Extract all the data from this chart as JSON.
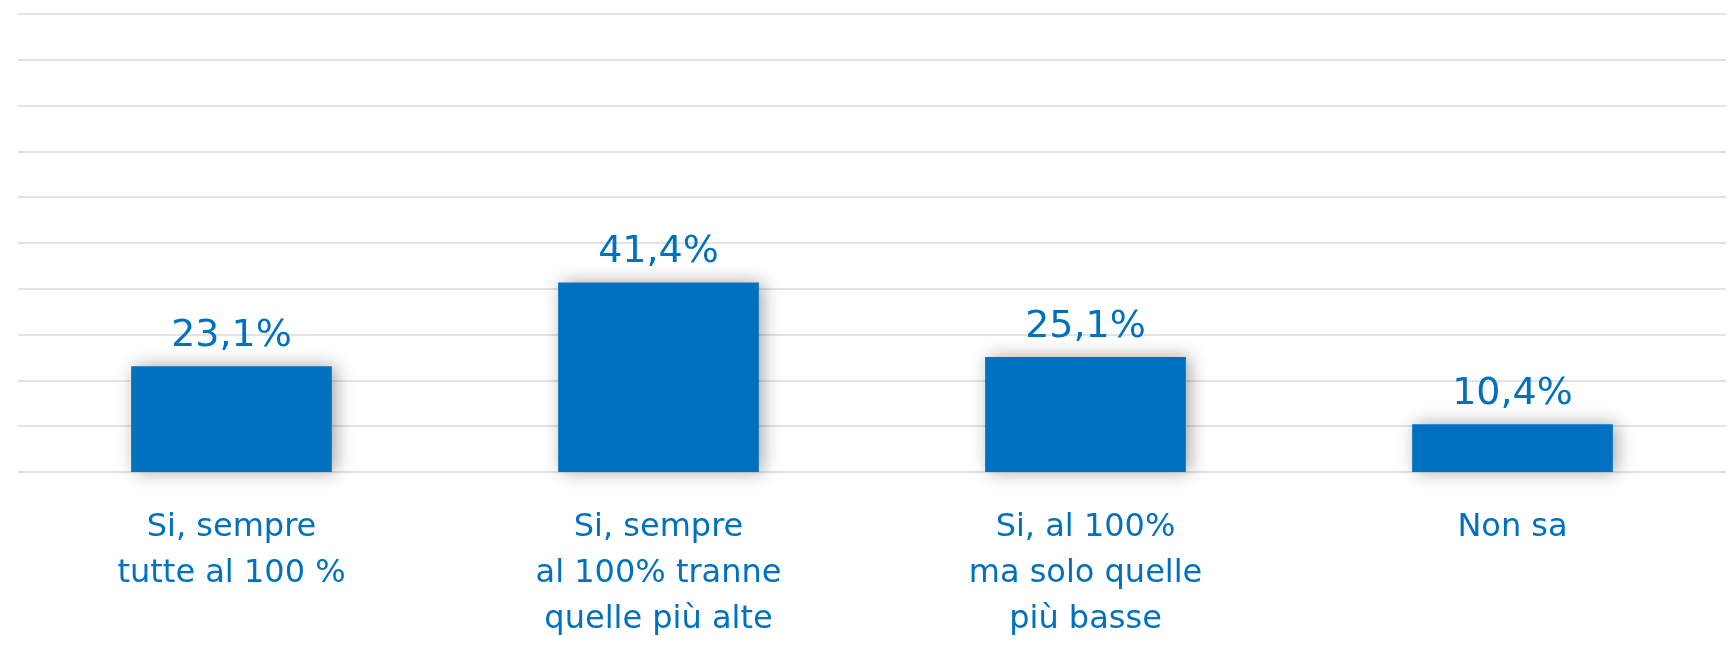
{
  "chart_data": {
    "type": "bar",
    "categories": [
      "Si, sempre\ntutte al 100 %",
      "Si, sempre\nal 100% tranne\nquelle più alte",
      "Si, al 100%\nma solo quelle\npiù basse",
      "Non sa"
    ],
    "values": [
      23.1,
      41.4,
      25.1,
      10.4
    ],
    "value_labels": [
      "23,1%",
      "41,4%",
      "25,1%",
      "10,4%"
    ],
    "color": "#0070c0",
    "ylim": [
      0,
      100
    ],
    "yticks": [
      {
        "value": 0,
        "label": null
      },
      {
        "value": 10,
        "label": null
      },
      {
        "value": 20,
        "label": null
      },
      {
        "value": 30,
        "label": null
      },
      {
        "value": 40,
        "label": null
      },
      {
        "value": 50,
        "label": null
      },
      {
        "value": 60,
        "label": null
      },
      {
        "value": 70,
        "label": null
      },
      {
        "value": 80,
        "label": null
      },
      {
        "value": 90,
        "label": null
      },
      {
        "value": 100,
        "label": null
      }
    ],
    "tick_labels": "x",
    "grid": "y"
  }
}
